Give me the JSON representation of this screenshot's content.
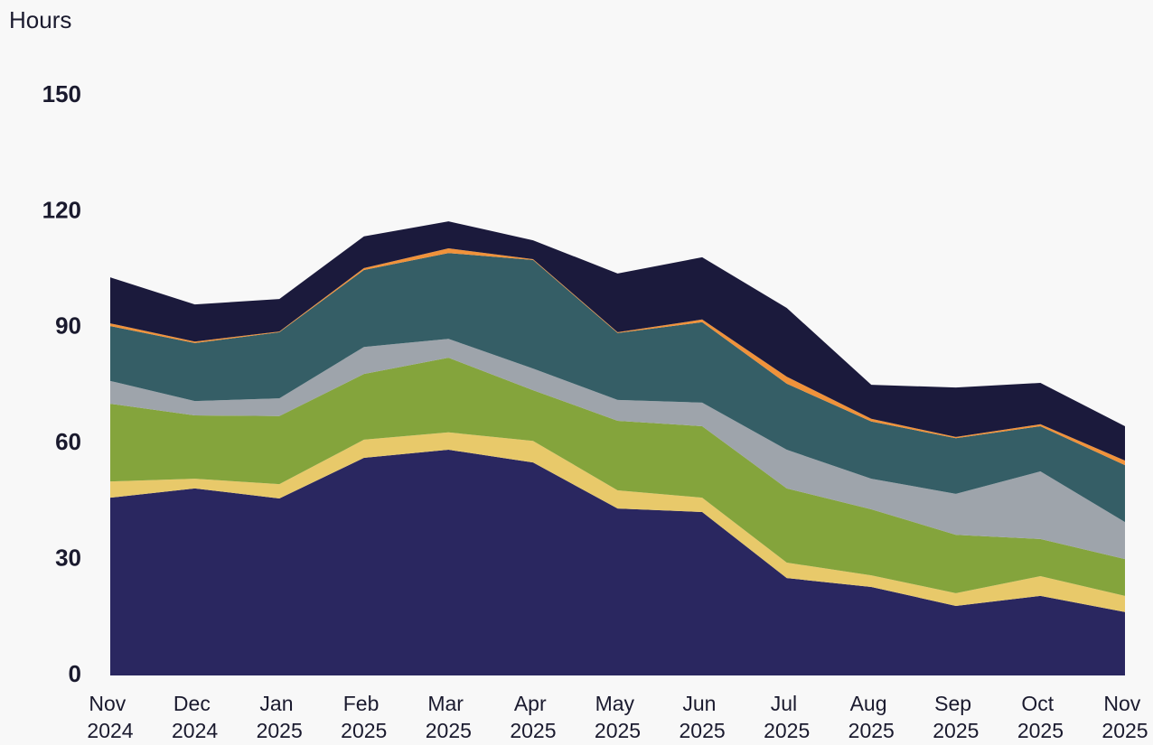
{
  "chart_data": {
    "type": "stacked-area",
    "y_label": "Hours",
    "categories": [
      "Nov 2024",
      "Dec 2024",
      "Jan 2025",
      "Feb 2025",
      "Mar 2025",
      "Apr 2025",
      "May 2025",
      "Jun 2025",
      "Jul 2025",
      "Aug 2025",
      "Sep 2025",
      "Oct 2025",
      "Nov 2025"
    ],
    "series": [
      {
        "color": "#2a2760",
        "values": [
          46.0,
          48.4,
          45.8,
          56.3,
          58.4,
          55.1,
          43.2,
          42.3,
          25.2,
          22.9,
          18.0,
          20.6,
          16.4
        ]
      },
      {
        "color": "#e8c96a",
        "values": [
          4.2,
          2.5,
          3.7,
          4.7,
          4.5,
          5.6,
          4.7,
          3.7,
          4.0,
          3.0,
          3.3,
          5.1,
          4.2
        ]
      },
      {
        "color": "#84a43c",
        "values": [
          20.1,
          16.4,
          17.6,
          17.0,
          19.3,
          13.1,
          18.0,
          18.5,
          19.2,
          17.1,
          15.1,
          9.6,
          9.5
        ]
      },
      {
        "color": "#9ea4ab",
        "values": [
          5.9,
          3.7,
          4.6,
          7.0,
          4.9,
          5.6,
          5.4,
          6.1,
          10.0,
          7.9,
          10.6,
          17.5,
          9.6
        ]
      },
      {
        "color": "#355e66",
        "values": [
          14.2,
          15.0,
          17.1,
          19.9,
          22.2,
          28.1,
          17.3,
          20.8,
          17.1,
          14.8,
          14.4,
          11.7,
          14.7
        ]
      },
      {
        "color": "#f0923a",
        "values": [
          0.7,
          0.4,
          0.2,
          0.5,
          1.2,
          0.2,
          0.2,
          0.7,
          1.8,
          0.7,
          0.3,
          0.5,
          1.2
        ]
      },
      {
        "color": "#1b1a3c",
        "values": [
          11.9,
          9.6,
          8.4,
          8.2,
          7.0,
          4.9,
          15.2,
          16.1,
          17.8,
          8.8,
          12.8,
          10.7,
          8.9
        ]
      }
    ],
    "ylim": [
      0,
      150
    ],
    "yticks": [
      0,
      30,
      60,
      90,
      120,
      150
    ],
    "grid": false
  }
}
